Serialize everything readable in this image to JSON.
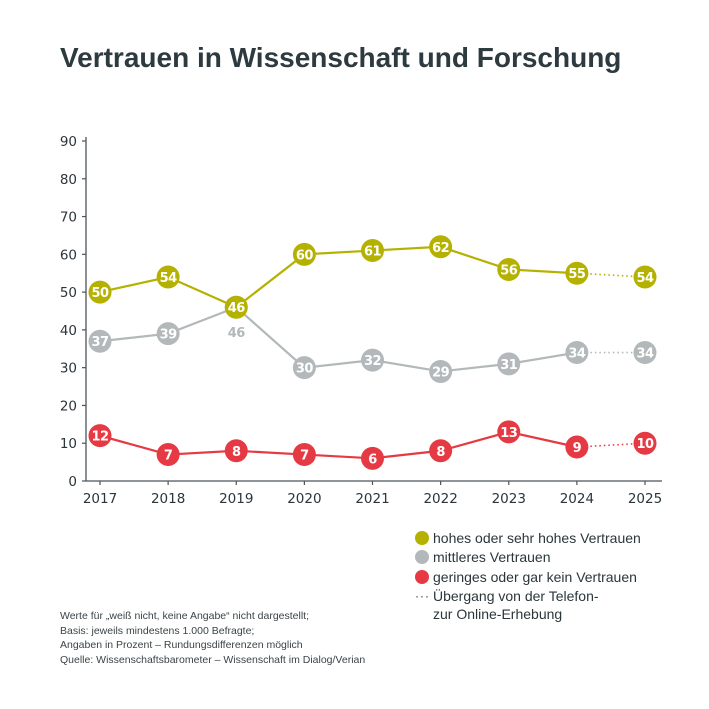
{
  "chart_data": {
    "type": "line",
    "title": "Vertrauen in Wissenschaft und Forschung",
    "x": [
      "2017",
      "2018",
      "2019",
      "2020",
      "2021",
      "2022",
      "2023",
      "2024",
      "2025"
    ],
    "yticks": [
      0,
      10,
      20,
      30,
      40,
      50,
      60,
      70,
      80,
      90
    ],
    "ylim": [
      0,
      90
    ],
    "grid": false,
    "legend_position": "bottom-right",
    "series": [
      {
        "name": "mittleres Vertrauen",
        "color": "#b3b8ba",
        "values": [
          37,
          39,
          46,
          30,
          32,
          29,
          31,
          34,
          34
        ]
      },
      {
        "name": "hohes oder sehr hohes Vertrauen",
        "color": "#b5b100",
        "values": [
          50,
          54,
          46,
          60,
          61,
          62,
          56,
          55,
          54
        ]
      },
      {
        "name": "geringes oder gar kein Vertrauen",
        "color": "#e53a43",
        "values": [
          12,
          7,
          8,
          7,
          6,
          8,
          13,
          9,
          10
        ]
      }
    ],
    "dotted_segment": {
      "from": "2024",
      "to": "2025",
      "label": [
        "Übergang von der Telefon-",
        "zur Online-Erhebung"
      ]
    }
  },
  "legend": [
    {
      "label": "hohes oder sehr hohes Vertrauen",
      "color": "#b5b100"
    },
    {
      "label": "mittleres Vertrauen",
      "color": "#b3b8ba"
    },
    {
      "label": "geringes oder gar kein Vertrauen",
      "color": "#e53a43"
    }
  ],
  "notes": [
    "Werte für „weiß nicht, keine Angabe“ nicht dargestellt;",
    "Basis: jeweils mindestens 1.000 Befragte;",
    "Angaben in Prozent – Rundungsdifferenzen möglich",
    "Quelle: Wissenschaftsbarometer – Wissenschaft im Dialog/Verian"
  ]
}
